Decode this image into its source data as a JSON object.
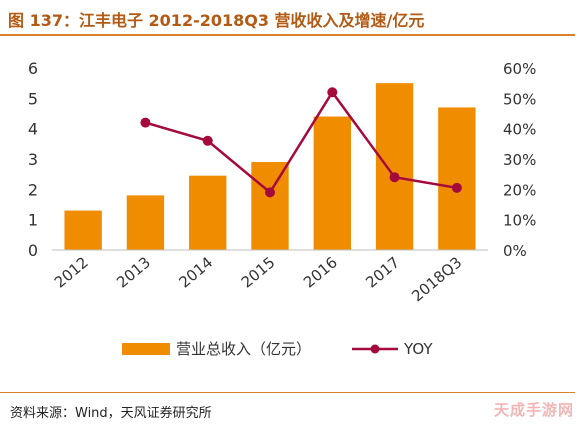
{
  "header": {
    "title": "图 137：江丰电子 2012-2018Q3 营收收入及增速/亿元"
  },
  "footer": {
    "source": "资料来源：Wind，天风证券研究所"
  },
  "watermark": "天成手游网",
  "colors": {
    "bar": "#f08c00",
    "line": "#a50a3c",
    "title": "#b35a14",
    "rule": "#d9822b"
  },
  "chart_data": {
    "type": "bar",
    "categories": [
      "2012",
      "2013",
      "2014",
      "2015",
      "2016",
      "2017",
      "2018Q3"
    ],
    "series": [
      {
        "name": "营业总收入（亿元）",
        "type": "bar",
        "axis": "left",
        "values": [
          1.3,
          1.8,
          2.45,
          2.9,
          4.4,
          5.5,
          4.7
        ]
      },
      {
        "name": "YOY",
        "type": "line",
        "axis": "right",
        "values": [
          null,
          42,
          36,
          19,
          52,
          24,
          20.5
        ]
      }
    ],
    "y_left": {
      "ylim": [
        0,
        6
      ],
      "ticks": [
        "0",
        "1",
        "2",
        "3",
        "4",
        "5",
        "6"
      ]
    },
    "y_right": {
      "ylim": [
        0,
        60
      ],
      "ticks": [
        "0%",
        "10%",
        "20%",
        "30%",
        "40%",
        "50%",
        "60%"
      ]
    },
    "legend_position": "bottom",
    "grid": false
  }
}
